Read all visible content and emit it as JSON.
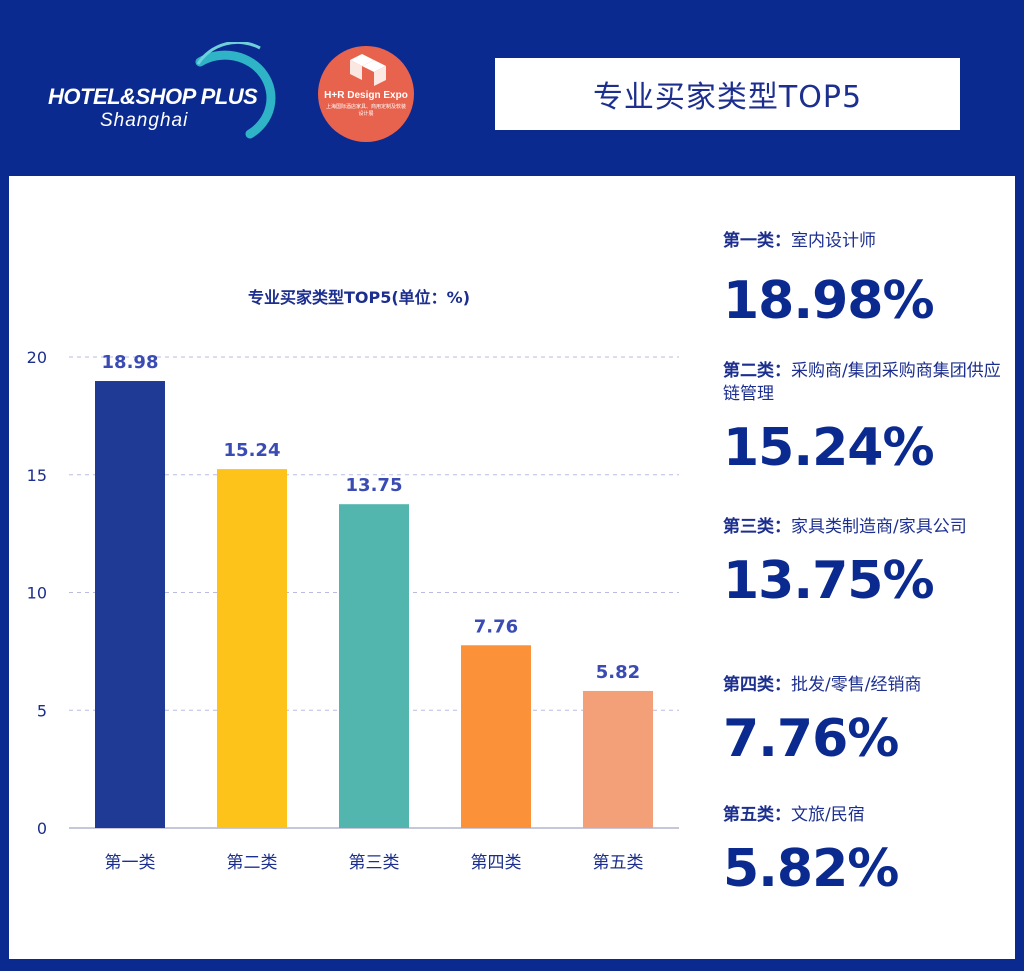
{
  "header": {
    "logo_title": "HOTEL&SHOP PLUS",
    "logo_subtitle": "Shanghai",
    "expo_name": "H+R Design Expo",
    "expo_subtitle": "上海国际酒店家具、商用定制及软装设计展",
    "title": "专业买家类型TOP5"
  },
  "colors": {
    "background": "#0b2a8f",
    "text": "#1c2f8f",
    "grid": "#b8bde0",
    "bars": [
      "#1e3a95",
      "#fdc31b",
      "#52b6ae",
      "#fb923a",
      "#f3a078"
    ]
  },
  "chart_data": {
    "type": "bar",
    "title": "专业买家类型TOP5(单位：%)",
    "categories": [
      "第一类",
      "第二类",
      "第三类",
      "第四类",
      "第五类"
    ],
    "values": [
      18.98,
      15.24,
      13.75,
      7.76,
      5.82
    ],
    "data_labels": [
      "18.98",
      "15.24",
      "13.75",
      "7.76",
      "5.82"
    ],
    "yticks": [
      "0",
      "5",
      "10",
      "15",
      "20"
    ],
    "ylim": [
      0,
      20
    ],
    "grid": true,
    "legend": "none"
  },
  "summary": [
    {
      "prefix": "第一类：",
      "label": "室内设计师",
      "value": "18.98%"
    },
    {
      "prefix": "第二类：",
      "label": "采购商/集团采购商集团供应链管理",
      "value": "15.24%"
    },
    {
      "prefix": "第三类：",
      "label": "家具类制造商/家具公司",
      "value": "13.75%"
    },
    {
      "prefix": "第四类：",
      "label": "批发/零售/经销商",
      "value": "7.76%"
    },
    {
      "prefix": "第五类：",
      "label": "文旅/民宿",
      "value": "5.82%"
    }
  ]
}
